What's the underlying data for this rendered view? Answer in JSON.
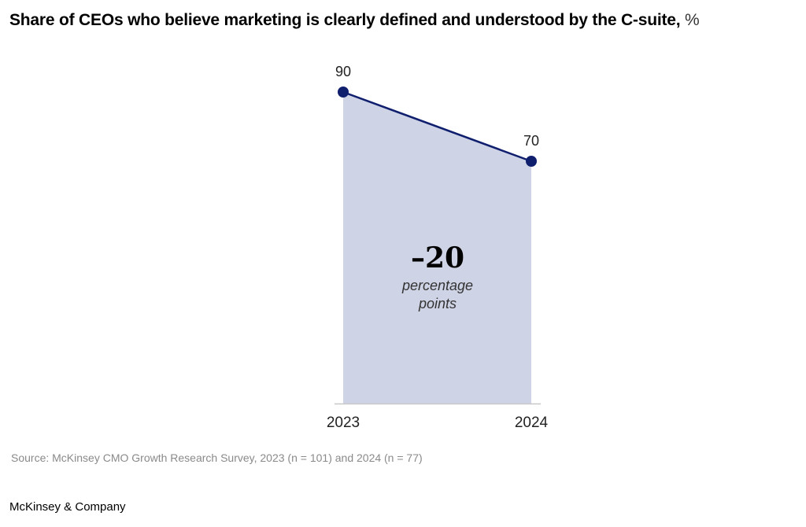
{
  "chart_data": {
    "type": "area",
    "title": "Share of CEOs who believe marketing is clearly defined and understood by the C-suite,",
    "title_unit": "%",
    "categories": [
      "2023",
      "2024"
    ],
    "series": [
      {
        "name": "Share of CEOs",
        "values": [
          90,
          70
        ]
      }
    ],
    "data_labels": [
      "90",
      "70"
    ],
    "ylim": [
      0,
      100
    ],
    "xlabel": "",
    "ylabel": "",
    "grid": false,
    "annotation": {
      "value": "–20",
      "line1": "percentage",
      "line2": "points"
    },
    "colors": {
      "line": "#0f1f6e",
      "fill": "#cfd3e6",
      "axis": "#c8c8c8"
    }
  },
  "source": "Source: McKinsey CMO Growth Research Survey, 2023 (n = 101) and 2024 (n = 77)",
  "brand": "McKinsey & Company"
}
